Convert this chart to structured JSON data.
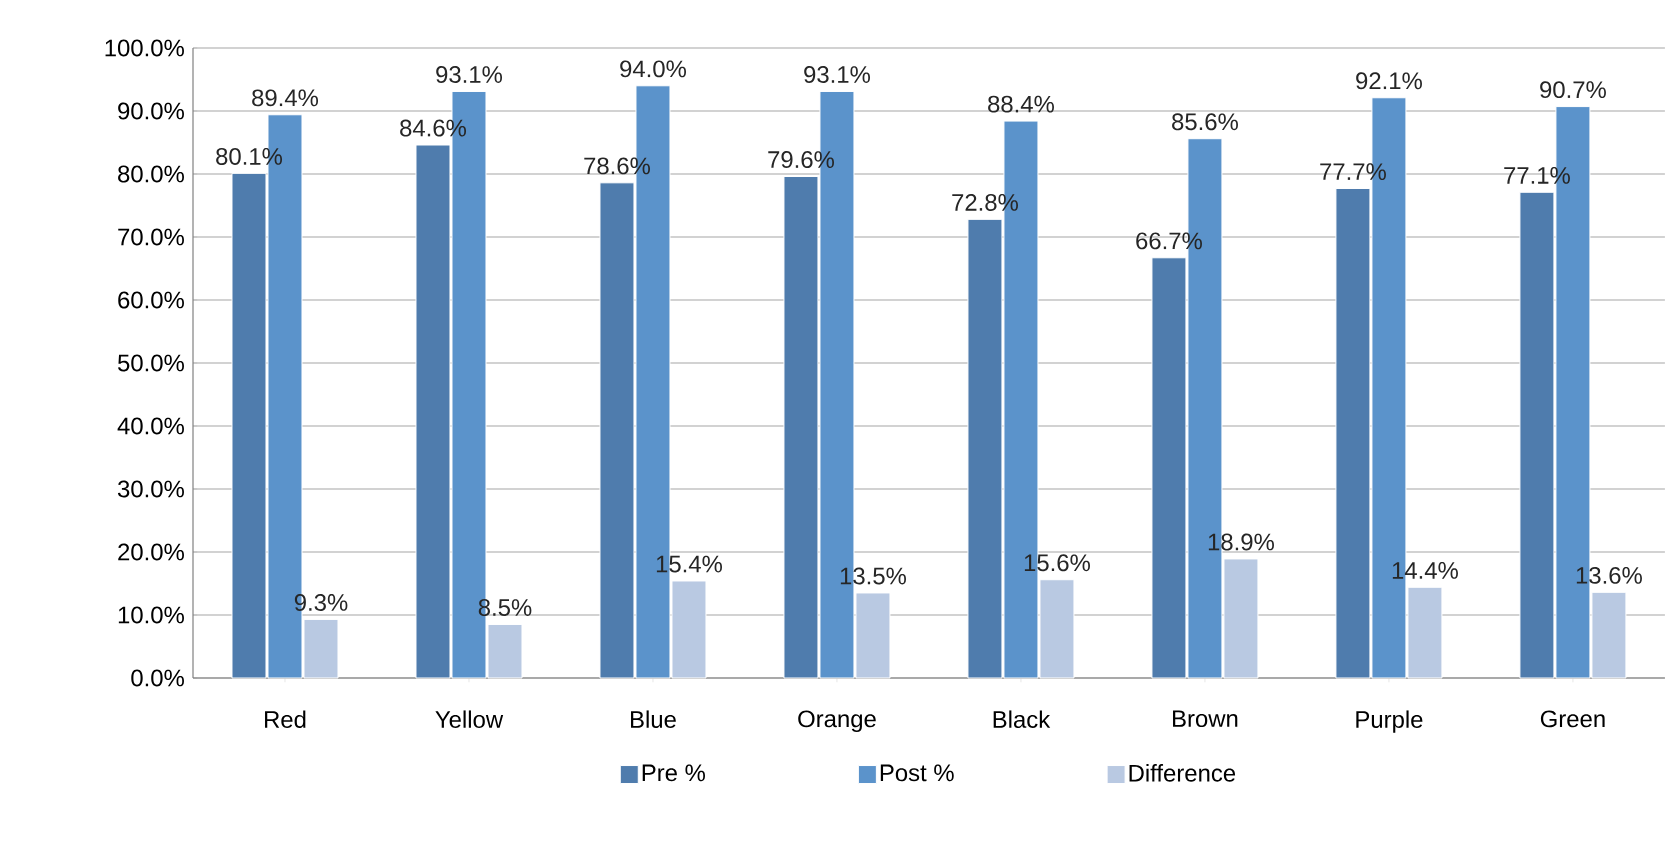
{
  "chart_data": {
    "type": "bar",
    "categories": [
      "Red",
      "Yellow",
      "Blue",
      "Orange",
      "Black",
      "Brown",
      "Purple",
      "Green"
    ],
    "series": [
      {
        "name": "Pre %",
        "color": "#4f7cad",
        "values": [
          80.1,
          84.6,
          78.6,
          79.6,
          72.8,
          66.7,
          77.7,
          77.1
        ],
        "value_labels": [
          "80.1%",
          "84.6%",
          "78.6%",
          "79.6%",
          "72.8%",
          "66.7%",
          "77.7%",
          "77.1%"
        ]
      },
      {
        "name": "Post %",
        "color": "#5b93cb",
        "values": [
          89.4,
          93.1,
          94.0,
          93.1,
          88.4,
          85.6,
          92.1,
          90.7
        ],
        "value_labels": [
          "89.4%",
          "93.1%",
          "94.0%",
          "93.1%",
          "88.4%",
          "85.6%",
          "92.1%",
          "90.7%"
        ]
      },
      {
        "name": "Difference",
        "color": "#b9c9e2",
        "values": [
          9.3,
          8.5,
          15.4,
          13.5,
          15.6,
          18.9,
          14.4,
          13.6
        ],
        "value_labels": [
          "9.3%",
          "8.5%",
          "15.4%",
          "13.5%",
          "15.6%",
          "18.9%",
          "14.4%",
          "13.6%"
        ]
      }
    ],
    "ylim": [
      0,
      100
    ],
    "yticks": [
      {
        "value": 0,
        "label": "0.0%"
      },
      {
        "value": 10,
        "label": "10.0%"
      },
      {
        "value": 20,
        "label": "20.0%"
      },
      {
        "value": 30,
        "label": "30.0%"
      },
      {
        "value": 40,
        "label": "40.0%"
      },
      {
        "value": 50,
        "label": "50.0%"
      },
      {
        "value": 60,
        "label": "60.0%"
      },
      {
        "value": 70,
        "label": "70.0%"
      },
      {
        "value": 80,
        "label": "80.0%"
      },
      {
        "value": 90,
        "label": "90.0%"
      },
      {
        "value": 100,
        "label": "100.0%"
      }
    ],
    "grid": "y",
    "legend": "bottom"
  }
}
